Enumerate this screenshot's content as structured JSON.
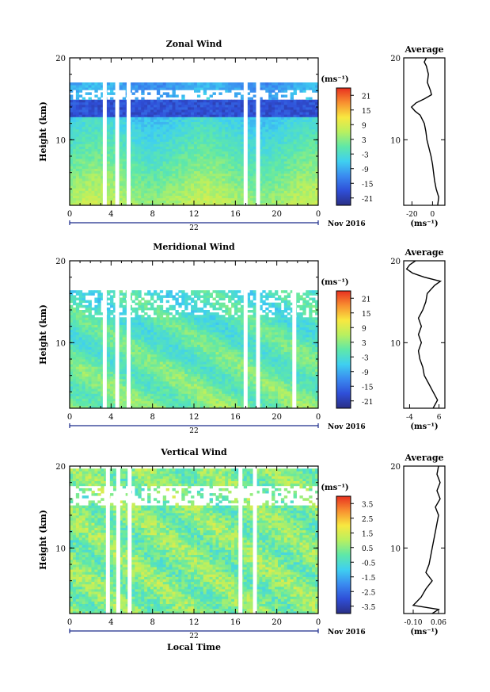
{
  "chart_data": [
    {
      "type": "heatmap",
      "title": "Zonal Wind",
      "xlabel": "",
      "ylabel": "Height (km)",
      "x_ticks": [
        "0",
        "4",
        "8",
        "12",
        "16",
        "20",
        "0"
      ],
      "x_sublabel": "22",
      "date_label": "Nov 2016",
      "xlim": [
        0,
        24
      ],
      "y_ticks": [
        "20",
        "10"
      ],
      "ylim": [
        2,
        20
      ],
      "colorbar": {
        "unit": "(ms⁻¹)",
        "ticks": [
          "21",
          "15",
          "9",
          "3",
          "-3",
          "-9",
          "-15",
          "-21"
        ],
        "range": [
          -24,
          24
        ]
      },
      "data_gaps_hours": [
        3.2,
        4.4,
        5.5,
        16.8,
        18.0
      ],
      "profile": {
        "title": "Average",
        "x_ticks": [
          "-20",
          "0"
        ],
        "xlim": [
          -28,
          12
        ],
        "xunit": "(ms⁻¹)",
        "y_ticks": [
          "20",
          "10"
        ],
        "height_km": [
          2.0,
          3.0,
          4.0,
          5.0,
          6.0,
          7.0,
          8.0,
          9.0,
          10.0,
          11.0,
          12.0,
          13.0,
          13.5,
          14.0,
          14.5,
          15.0,
          15.5,
          16.0,
          17.0,
          18.0,
          19.0,
          19.5,
          20.0
        ],
        "value": [
          5.0,
          6.0,
          3.5,
          2.0,
          1.0,
          0.0,
          -1.5,
          -3.5,
          -5.5,
          -6.5,
          -8.0,
          -12.0,
          -17.0,
          -20.5,
          -16.0,
          -8.0,
          -1.0,
          -2.0,
          -5.0,
          -4.0,
          -6.0,
          -8.0,
          -6.0
        ]
      }
    },
    {
      "type": "heatmap",
      "title": "Meridional Wind",
      "xlabel": "",
      "ylabel": "Height (km)",
      "x_ticks": [
        "0",
        "4",
        "8",
        "12",
        "16",
        "20",
        "0"
      ],
      "x_sublabel": "22",
      "date_label": "Nov 2016",
      "xlim": [
        0,
        24
      ],
      "y_ticks": [
        "20",
        "10"
      ],
      "ylim": [
        2,
        20
      ],
      "colorbar": {
        "unit": "(ms⁻¹)",
        "ticks": [
          "21",
          "15",
          "9",
          "3",
          "-3",
          "-9",
          "-15",
          "-21"
        ],
        "range": [
          -24,
          24
        ]
      },
      "data_gaps_hours": [
        3.2,
        4.4,
        5.5,
        16.8,
        18.0,
        21.5
      ],
      "profile": {
        "title": "Average",
        "x_ticks": [
          "-4",
          "6"
        ],
        "xlim": [
          -6,
          8
        ],
        "xunit": "(ms⁻¹)",
        "y_ticks": [
          "20",
          "10"
        ],
        "height_km": [
          2.0,
          3.0,
          4.0,
          5.0,
          6.0,
          7.0,
          8.0,
          9.0,
          10.0,
          11.0,
          12.0,
          13.0,
          14.0,
          15.0,
          16.0,
          17.0,
          17.5,
          18.0,
          18.5,
          19.0,
          19.5,
          20.0
        ],
        "value": [
          4.0,
          5.5,
          4.0,
          2.5,
          1.0,
          0.5,
          -0.5,
          -1.0,
          0.0,
          -1.0,
          0.0,
          -1.0,
          0.5,
          1.5,
          2.0,
          4.5,
          6.5,
          1.0,
          -3.0,
          -5.0,
          -4.0,
          -2.0
        ]
      }
    },
    {
      "type": "heatmap",
      "title": "Vertical Wind",
      "xlabel": "Local Time",
      "ylabel": "Height (km)",
      "x_ticks": [
        "0",
        "4",
        "8",
        "12",
        "16",
        "20",
        "0"
      ],
      "x_sublabel": "22",
      "date_label": "Nov 2016",
      "xlim": [
        0,
        24
      ],
      "y_ticks": [
        "20",
        "10"
      ],
      "ylim": [
        2,
        20
      ],
      "colorbar": {
        "unit": "(ms⁻¹)",
        "ticks": [
          "3.5",
          "2.5",
          "1.5",
          "0.5",
          "-0.5",
          "-1.5",
          "-2.5",
          "-3.5"
        ],
        "range": [
          -4,
          4
        ]
      },
      "data_gaps_hours": [
        3.5,
        4.5,
        5.6,
        16.3,
        17.7
      ],
      "profile": {
        "title": "Average",
        "x_ticks": [
          "-0.10",
          "0.06"
        ],
        "xlim": [
          -0.16,
          0.1
        ],
        "xunit": "(ms⁻¹)",
        "y_ticks": [
          "20",
          "10"
        ],
        "height_km": [
          2.0,
          2.5,
          3.0,
          4.0,
          5.0,
          6.0,
          7.0,
          8.0,
          9.0,
          10.0,
          11.0,
          12.0,
          13.0,
          14.0,
          15.0,
          16.0,
          17.0,
          18.0,
          19.0,
          20.0
        ],
        "value": [
          0.02,
          0.06,
          -0.1,
          -0.05,
          -0.02,
          0.02,
          -0.02,
          0.0,
          0.01,
          0.02,
          0.03,
          0.04,
          0.05,
          0.06,
          0.04,
          0.07,
          0.05,
          0.07,
          0.05,
          0.06
        ]
      }
    }
  ]
}
